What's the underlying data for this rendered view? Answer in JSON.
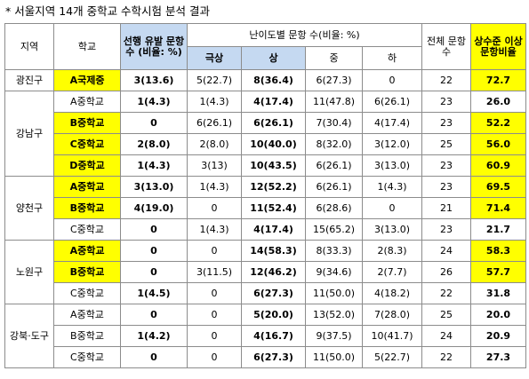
{
  "title": "* 서울지역 14개 중학교 수학시험 분석 결과",
  "headers": {
    "region": "지역",
    "school": "학교",
    "prior": "선행 유발 문항수 (비율: %)",
    "difficulty": "난이도별 문항 수(비율: %)",
    "total": "전체 문항수",
    "ratio": "상수준 이상 문항비율",
    "sub": [
      "극상",
      "상",
      "중",
      "하"
    ]
  },
  "groups": [
    {
      "region": "광진구",
      "rows": [
        {
          "school": "A국제중",
          "highlight": true,
          "prior": "3(13.6)",
          "top": "5(22.7)",
          "high": "8(36.4)",
          "mid": "6(27.3)",
          "low": "0",
          "total": "22",
          "ratio": "72.7",
          "ratio_highlight": true
        }
      ]
    },
    {
      "region": "강남구",
      "rows": [
        {
          "school": "A중학교",
          "highlight": false,
          "prior": "1(4.3)",
          "top": "1(4.3)",
          "high": "4(17.4)",
          "mid": "11(47.8)",
          "low": "6(26.1)",
          "total": "23",
          "ratio": "26.0",
          "ratio_highlight": false
        },
        {
          "school": "B중학교",
          "highlight": true,
          "prior": "0",
          "top": "6(26.1)",
          "high": "6(26.1)",
          "mid": "7(30.4)",
          "low": "4(17.4)",
          "total": "23",
          "ratio": "52.2",
          "ratio_highlight": true
        },
        {
          "school": "C중학교",
          "highlight": true,
          "prior": "2(8.0)",
          "top": "2(8.0)",
          "high": "10(40.0)",
          "mid": "8(32.0)",
          "low": "3(12.0)",
          "total": "25",
          "ratio": "56.0",
          "ratio_highlight": true
        },
        {
          "school": "D중학교",
          "highlight": true,
          "prior": "1(4.3)",
          "top": "3(13)",
          "high": "10(43.5)",
          "mid": "6(26.1)",
          "low": "3(13.0)",
          "total": "23",
          "ratio": "60.9",
          "ratio_highlight": true
        }
      ]
    },
    {
      "region": "양천구",
      "rows": [
        {
          "school": "A중학교",
          "highlight": true,
          "prior": "3(13.0)",
          "top": "1(4.3)",
          "high": "12(52.2)",
          "mid": "6(26.1)",
          "low": "1(4.3)",
          "total": "23",
          "ratio": "69.5",
          "ratio_highlight": true
        },
        {
          "school": "B중학교",
          "highlight": true,
          "prior": "4(19.0)",
          "top": "0",
          "high": "11(52.4)",
          "mid": "6(28.6)",
          "low": "0",
          "total": "21",
          "ratio": "71.4",
          "ratio_highlight": true
        },
        {
          "school": "C중학교",
          "highlight": false,
          "prior": "0",
          "top": "1(4.3)",
          "high": "4(17.4)",
          "mid": "15(65.2)",
          "low": "3(13.0)",
          "total": "23",
          "ratio": "21.7",
          "ratio_highlight": false
        }
      ]
    },
    {
      "region": "노원구",
      "rows": [
        {
          "school": "A중학교",
          "highlight": true,
          "prior": "0",
          "top": "0",
          "high": "14(58.3)",
          "mid": "8(33.3)",
          "low": "2(8.3)",
          "total": "24",
          "ratio": "58.3",
          "ratio_highlight": true
        },
        {
          "school": "B중학교",
          "highlight": true,
          "prior": "0",
          "top": "3(11.5)",
          "high": "12(46.2)",
          "mid": "9(34.6)",
          "low": "2(7.7)",
          "total": "26",
          "ratio": "57.7",
          "ratio_highlight": true
        },
        {
          "school": "C중학교",
          "highlight": false,
          "prior": "1(4.5)",
          "top": "0",
          "high": "6(27.3)",
          "mid": "11(50.0)",
          "low": "4(18.2)",
          "total": "22",
          "ratio": "31.8",
          "ratio_highlight": false
        }
      ]
    },
    {
      "region": "강북·도구",
      "rows": [
        {
          "school": "A중학교",
          "highlight": false,
          "prior": "0",
          "top": "0",
          "high": "5(20.0)",
          "mid": "13(52.0)",
          "low": "7(28.0)",
          "total": "25",
          "ratio": "20.0",
          "ratio_highlight": false
        },
        {
          "school": "B중학교",
          "highlight": false,
          "prior": "1(4.2)",
          "top": "0",
          "high": "4(16.7)",
          "mid": "9(37.5)",
          "low": "10(41.7)",
          "total": "24",
          "ratio": "20.9",
          "ratio_highlight": false
        },
        {
          "school": "C중학교",
          "highlight": false,
          "prior": "0",
          "top": "0",
          "high": "6(27.3)",
          "mid": "11(50.0)",
          "low": "5(22.7)",
          "total": "22",
          "ratio": "27.3",
          "ratio_highlight": false
        }
      ]
    }
  ]
}
